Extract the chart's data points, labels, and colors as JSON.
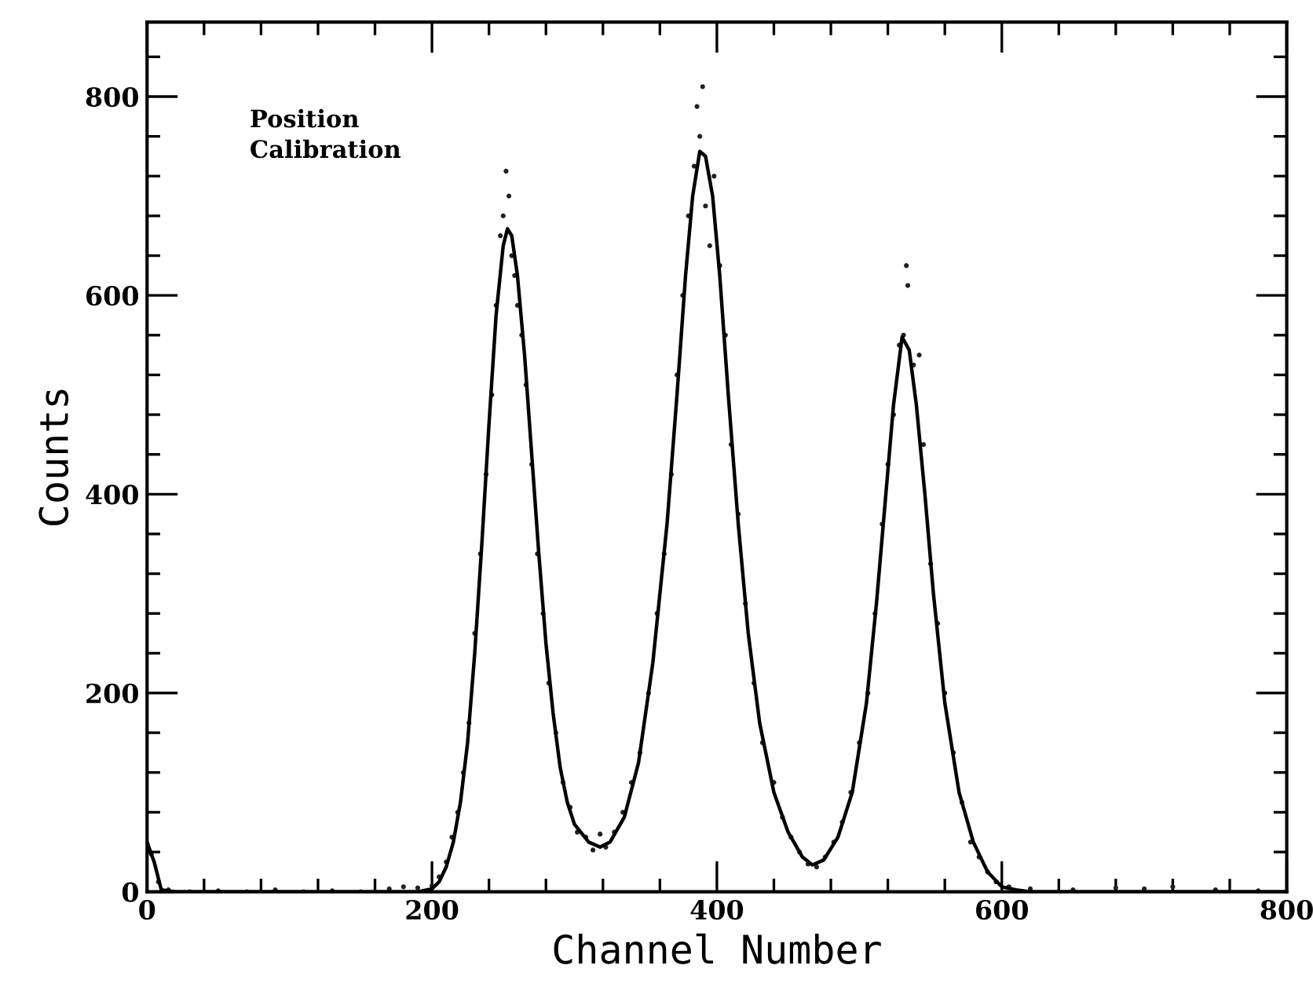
{
  "chart_data": {
    "type": "scatter",
    "xlabel": "Channel Number",
    "ylabel": "Counts",
    "annotations": [
      "Position\nCalibration"
    ],
    "xlim": [
      0,
      800
    ],
    "ylim": [
      0,
      875
    ],
    "xticks": [
      0,
      {
        "value": 40,
        "label": null
      },
      {
        "value": 80,
        "label": null
      },
      {
        "value": 120,
        "label": null
      },
      {
        "value": 160,
        "label": null
      },
      200,
      {
        "value": 240,
        "label": null
      },
      {
        "value": 280,
        "label": null
      },
      {
        "value": 320,
        "label": null
      },
      {
        "value": 360,
        "label": null
      },
      400,
      {
        "value": 440,
        "label": null
      },
      {
        "value": 480,
        "label": null
      },
      {
        "value": 520,
        "label": null
      },
      {
        "value": 560,
        "label": null
      },
      600,
      {
        "value": 640,
        "label": null
      },
      {
        "value": 680,
        "label": null
      },
      {
        "value": 720,
        "label": null
      },
      {
        "value": 760,
        "label": null
      },
      800
    ],
    "yticks": [
      0,
      {
        "value": 40,
        "label": null
      },
      {
        "value": 80,
        "label": null
      },
      {
        "value": 120,
        "label": null
      },
      {
        "value": 160,
        "label": null
      },
      200,
      {
        "value": 240,
        "label": null
      },
      {
        "value": 280,
        "label": null
      },
      {
        "value": 320,
        "label": null
      },
      {
        "value": 360,
        "label": null
      },
      400,
      {
        "value": 440,
        "label": null
      },
      {
        "value": 480,
        "label": null
      },
      {
        "value": 520,
        "label": null
      },
      {
        "value": 560,
        "label": null
      },
      600,
      {
        "value": 640,
        "label": null
      },
      {
        "value": 680,
        "label": null
      },
      {
        "value": 720,
        "label": null
      },
      {
        "value": 760,
        "label": null
      },
      800,
      {
        "value": 840,
        "label": null
      }
    ],
    "grid": false,
    "series": [
      {
        "color": "#222222",
        "marker": "circle",
        "x": [
          0,
          3,
          8,
          15,
          30,
          50,
          70,
          90,
          110,
          130,
          150,
          170,
          180,
          190,
          200,
          205,
          210,
          214,
          218,
          222,
          226,
          230,
          234,
          238,
          242,
          245,
          248,
          250,
          252,
          254,
          256,
          258,
          260,
          263,
          266,
          270,
          274,
          278,
          282,
          287,
          292,
          297,
          302,
          308,
          313,
          318,
          322,
          328,
          334,
          340,
          346,
          352,
          358,
          363,
          368,
          372,
          376,
          380,
          384,
          386,
          388,
          390,
          392,
          395,
          398,
          402,
          406,
          410,
          415,
          420,
          426,
          432,
          440,
          446,
          452,
          458,
          464,
          470,
          476,
          482,
          488,
          494,
          500,
          506,
          511,
          516,
          520,
          524,
          528,
          531,
          533,
          534,
          538,
          542,
          545,
          550,
          555,
          560,
          566,
          572,
          578,
          584,
          590,
          596,
          605,
          620,
          650,
          680,
          700,
          720,
          750,
          780
        ],
        "values": [
          48,
          38,
          10,
          2,
          0,
          1,
          0,
          2,
          0,
          1,
          0,
          3,
          5,
          4,
          6,
          15,
          30,
          55,
          80,
          120,
          170,
          260,
          340,
          420,
          500,
          590,
          660,
          680,
          725,
          700,
          640,
          620,
          590,
          560,
          510,
          430,
          340,
          280,
          210,
          160,
          110,
          85,
          60,
          55,
          42,
          58,
          45,
          60,
          80,
          110,
          140,
          200,
          280,
          340,
          420,
          520,
          600,
          680,
          730,
          790,
          760,
          810,
          690,
          650,
          720,
          630,
          560,
          450,
          380,
          290,
          210,
          150,
          110,
          75,
          55,
          40,
          28,
          25,
          35,
          50,
          70,
          100,
          150,
          200,
          280,
          370,
          430,
          480,
          550,
          560,
          630,
          610,
          530,
          540,
          450,
          330,
          270,
          200,
          140,
          90,
          50,
          35,
          20,
          10,
          5,
          3,
          2,
          4,
          3,
          5,
          2,
          1
        ]
      },
      {
        "type": "line",
        "color": "#000000",
        "marker": "none",
        "line_style": "solid",
        "x": [
          0,
          5,
          10,
          20,
          100,
          190,
          200,
          205,
          210,
          215,
          220,
          225,
          230,
          235,
          240,
          245,
          250,
          253,
          256,
          260,
          265,
          270,
          275,
          280,
          285,
          290,
          295,
          300,
          310,
          318,
          325,
          335,
          345,
          355,
          365,
          372,
          378,
          383,
          388,
          392,
          397,
          402,
          408,
          415,
          422,
          430,
          440,
          450,
          460,
          467,
          475,
          485,
          495,
          505,
          512,
          518,
          524,
          530,
          535,
          540,
          546,
          552,
          560,
          570,
          580,
          590,
          600,
          610,
          620,
          800
        ],
        "values": [
          50,
          30,
          2,
          0,
          0,
          0,
          3,
          10,
          25,
          50,
          90,
          150,
          240,
          350,
          470,
          580,
          650,
          667,
          660,
          620,
          540,
          440,
          340,
          250,
          180,
          125,
          90,
          68,
          50,
          45,
          50,
          75,
          130,
          230,
          370,
          500,
          620,
          700,
          745,
          740,
          700,
          620,
          500,
          370,
          260,
          170,
          100,
          60,
          35,
          27,
          32,
          55,
          100,
          190,
          290,
          390,
          490,
          558,
          545,
          490,
          400,
          300,
          190,
          100,
          50,
          20,
          5,
          2,
          0,
          0
        ]
      }
    ]
  }
}
